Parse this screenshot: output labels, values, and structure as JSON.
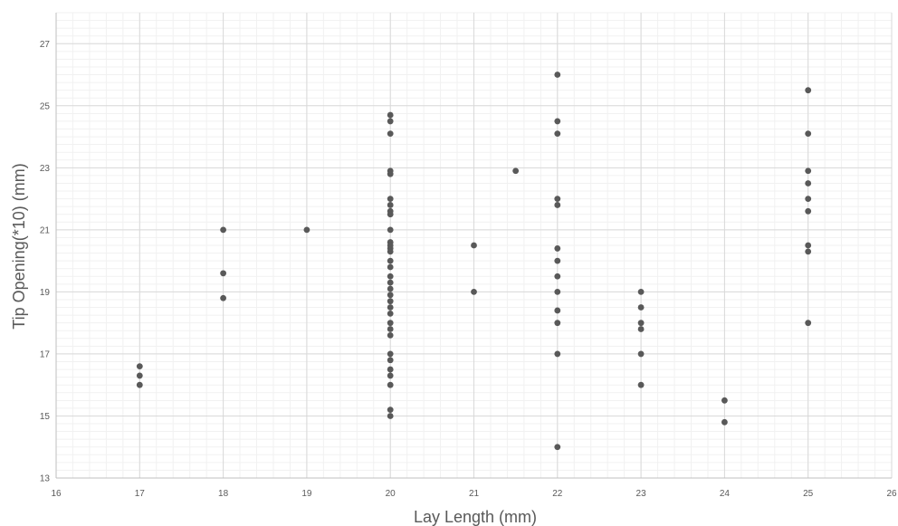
{
  "chart_data": {
    "type": "scatter",
    "xlabel": "Lay Length (mm)",
    "ylabel": "Tip Opening(*10) (mm)",
    "xlim": [
      16,
      26
    ],
    "ylim": [
      13,
      28
    ],
    "x_ticks": [
      16,
      17,
      18,
      19,
      20,
      21,
      22,
      23,
      24,
      25,
      26
    ],
    "y_ticks": [
      13,
      15,
      17,
      19,
      21,
      23,
      25,
      27
    ],
    "grid": true,
    "minor_grid": true,
    "legend": "none",
    "marker_color": "#595959",
    "points": [
      [
        17,
        16.6
      ],
      [
        17,
        16.3
      ],
      [
        17,
        16.0
      ],
      [
        18,
        21.0
      ],
      [
        18,
        19.6
      ],
      [
        18,
        18.8
      ],
      [
        19,
        21.0
      ],
      [
        20,
        24.7
      ],
      [
        20,
        24.5
      ],
      [
        20,
        24.1
      ],
      [
        20,
        22.9
      ],
      [
        20,
        22.8
      ],
      [
        20,
        22.0
      ],
      [
        20,
        21.8
      ],
      [
        20,
        21.6
      ],
      [
        20,
        21.5
      ],
      [
        20,
        21.0
      ],
      [
        20,
        20.6
      ],
      [
        20,
        20.5
      ],
      [
        20,
        20.4
      ],
      [
        20,
        20.3
      ],
      [
        20,
        20.0
      ],
      [
        20,
        19.8
      ],
      [
        20,
        19.5
      ],
      [
        20,
        19.3
      ],
      [
        20,
        19.1
      ],
      [
        20,
        18.9
      ],
      [
        20,
        18.7
      ],
      [
        20,
        18.5
      ],
      [
        20,
        18.3
      ],
      [
        20,
        18.0
      ],
      [
        20,
        17.8
      ],
      [
        20,
        17.6
      ],
      [
        20,
        17.0
      ],
      [
        20,
        16.8
      ],
      [
        20,
        16.5
      ],
      [
        20,
        16.3
      ],
      [
        20,
        16.0
      ],
      [
        20,
        15.2
      ],
      [
        20,
        15.0
      ],
      [
        21,
        20.5
      ],
      [
        21,
        19.0
      ],
      [
        21.5,
        22.9
      ],
      [
        22,
        26.0
      ],
      [
        22,
        24.5
      ],
      [
        22,
        24.1
      ],
      [
        22,
        22.0
      ],
      [
        22,
        21.8
      ],
      [
        22,
        20.4
      ],
      [
        22,
        20.0
      ],
      [
        22,
        19.5
      ],
      [
        22,
        19.0
      ],
      [
        22,
        18.4
      ],
      [
        22,
        18.0
      ],
      [
        22,
        17.0
      ],
      [
        22,
        14.0
      ],
      [
        23,
        19.0
      ],
      [
        23,
        18.5
      ],
      [
        23,
        18.0
      ],
      [
        23,
        17.8
      ],
      [
        23,
        17.0
      ],
      [
        23,
        16.0
      ],
      [
        24,
        15.5
      ],
      [
        24,
        14.8
      ],
      [
        25,
        25.5
      ],
      [
        25,
        24.1
      ],
      [
        25,
        22.9
      ],
      [
        25,
        22.5
      ],
      [
        25,
        22.0
      ],
      [
        25,
        21.6
      ],
      [
        25,
        20.5
      ],
      [
        25,
        20.3
      ],
      [
        25,
        18.0
      ]
    ]
  }
}
